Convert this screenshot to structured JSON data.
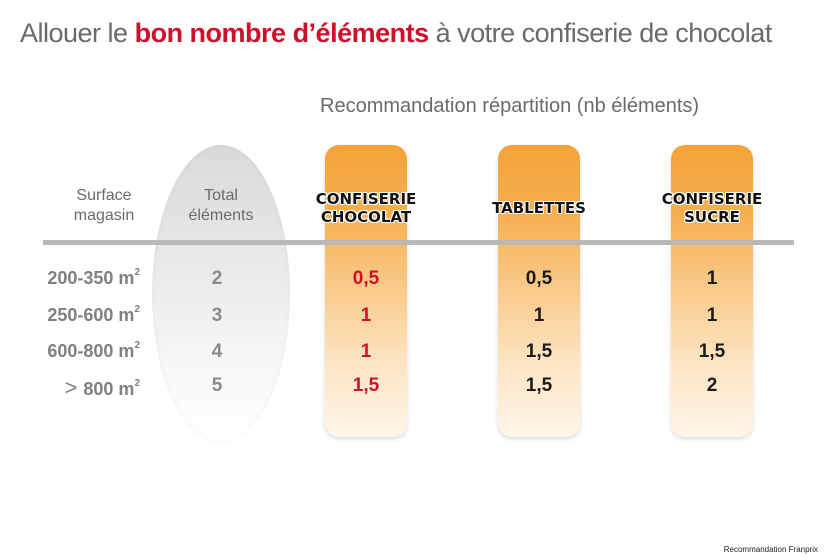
{
  "title": {
    "before": "Allouer le ",
    "highlight": "bon nombre d’éléments",
    "after": " à votre confiserie de chocolat"
  },
  "subtitle": "Recommandation répartition (nb éléments)",
  "headers": {
    "surface": [
      "Surface",
      "magasin"
    ],
    "total": [
      "Total",
      "éléments"
    ],
    "categories": [
      {
        "lines": [
          "CONFISERIE",
          "CHOCOLAT"
        ]
      },
      {
        "lines": [
          "TABLETTES"
        ]
      },
      {
        "lines": [
          "CONFISERIE",
          "SUCRE"
        ]
      }
    ]
  },
  "rows": [
    {
      "surface": "200-350 m",
      "sup": "2",
      "prefix": "",
      "total": "2",
      "values": [
        "0,5",
        "0,5",
        "1"
      ]
    },
    {
      "surface": "250-600 m",
      "sup": "2",
      "prefix": "",
      "total": "3",
      "values": [
        "1",
        "1",
        "1"
      ]
    },
    {
      "surface": "600-800 m",
      "sup": "2",
      "prefix": "",
      "total": "4",
      "values": [
        "1",
        "1,5",
        "1,5"
      ]
    },
    {
      "surface": "800 m",
      "sup": "2",
      "prefix": ">",
      "total": "5",
      "values": [
        "1,5",
        "1,5",
        "2"
      ]
    }
  ],
  "credit": "Recommandation Franprix",
  "colors": {
    "accent_red": "#d0102a",
    "column_orange": "#f4a33a",
    "text_gray": "#6a6a6a"
  }
}
